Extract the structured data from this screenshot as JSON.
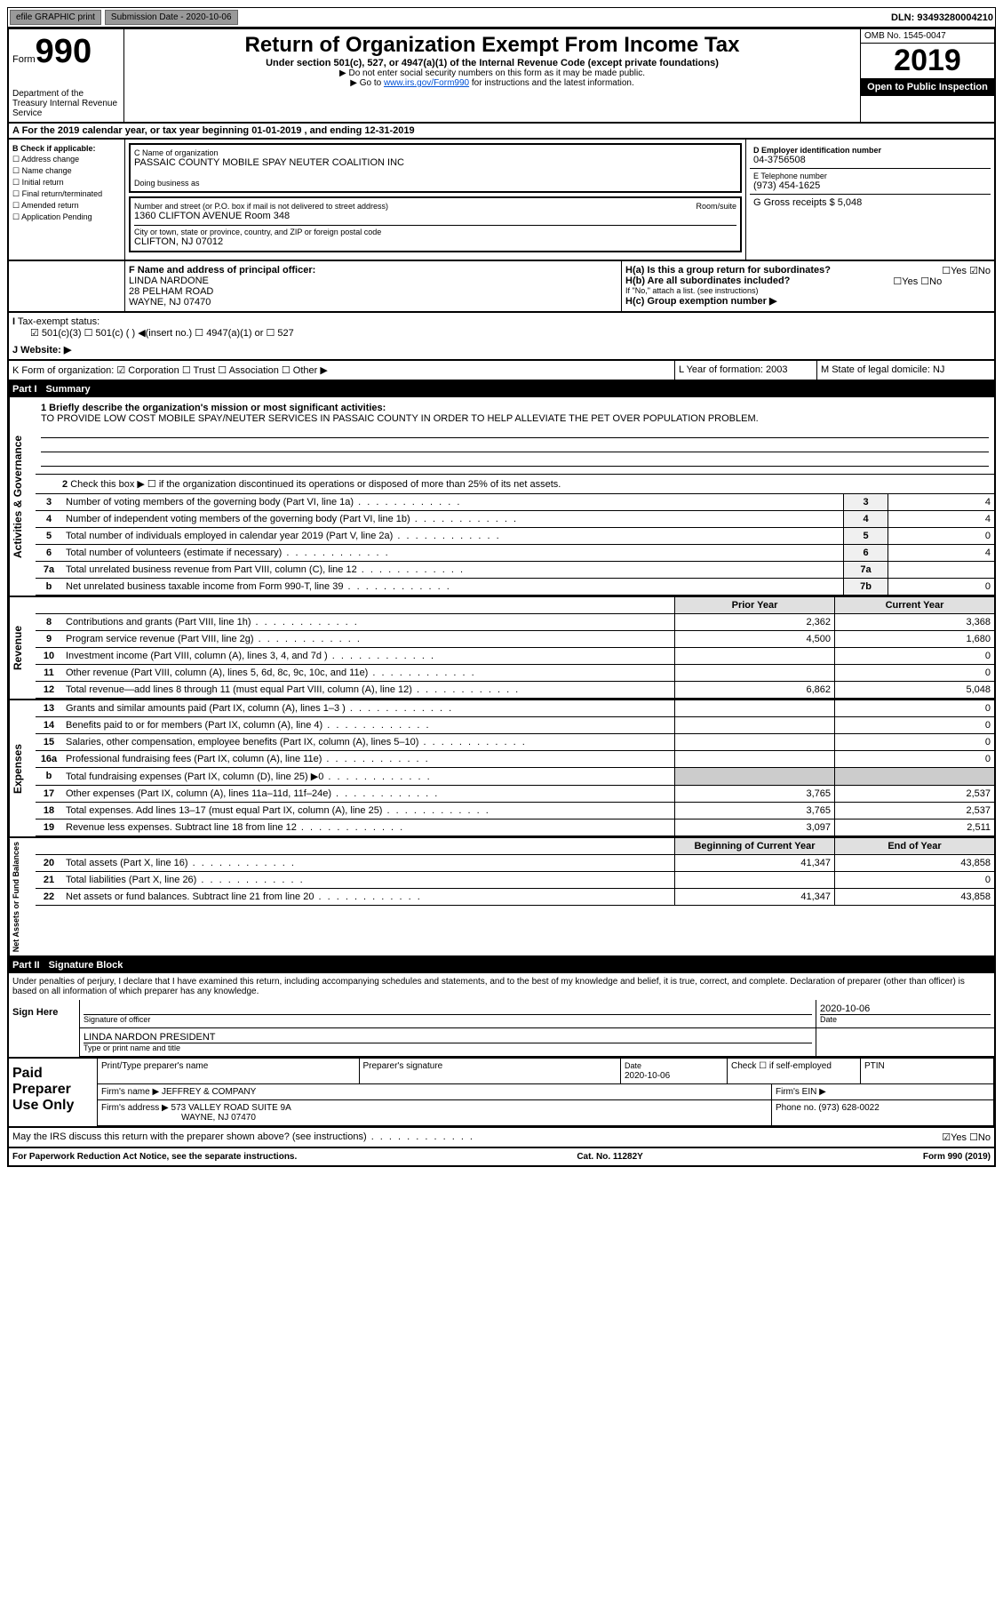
{
  "topbar": {
    "efile": "efile GRAPHIC print",
    "sub_label": "Submission Date - 2020-10-06",
    "dln": "DLN: 93493280004210"
  },
  "header": {
    "form_word": "Form",
    "form_num": "990",
    "dept": "Department of the Treasury\nInternal Revenue Service",
    "title": "Return of Organization Exempt From Income Tax",
    "subtitle": "Under section 501(c), 527, or 4947(a)(1) of the Internal Revenue Code (except private foundations)",
    "instr1": "▶ Do not enter social security numbers on this form as it may be made public.",
    "instr2_pre": "▶ Go to ",
    "instr2_link": "www.irs.gov/Form990",
    "instr2_post": " for instructions and the latest information.",
    "omb": "OMB No. 1545-0047",
    "year": "2019",
    "open": "Open to Public Inspection"
  },
  "section_a": "A For the 2019 calendar year, or tax year beginning 01-01-2019   , and ending 12-31-2019",
  "checks": {
    "hdr": "B Check if applicable:",
    "items": [
      "☐ Address change",
      "☐ Name change",
      "☐ Initial return",
      "☐ Final return/terminated",
      "☐ Amended return",
      "☐ Application Pending"
    ]
  },
  "org": {
    "name_label": "C Name of organization",
    "name": "PASSAIC COUNTY MOBILE SPAY NEUTER COALITION INC",
    "dba_label": "Doing business as",
    "dba": "",
    "addr_label": "Number and street (or P.O. box if mail is not delivered to street address)",
    "room_label": "Room/suite",
    "addr": "1360 CLIFTON AVENUE Room 348",
    "city_label": "City or town, state or province, country, and ZIP or foreign postal code",
    "city": "CLIFTON, NJ  07012"
  },
  "right": {
    "ein_label": "D Employer identification number",
    "ein": "04-3756508",
    "tel_label": "E Telephone number",
    "tel": "(973) 454-1625",
    "gross_label": "G Gross receipts $ 5,048"
  },
  "fg": {
    "f_label": "F  Name and address of principal officer:",
    "f_name": "LINDA NARDONE",
    "f_addr1": "28 PELHAM ROAD",
    "f_addr2": "WAYNE, NJ  07470",
    "ha": "H(a)  Is this a group return for subordinates?",
    "ha_ans": "☐Yes ☑No",
    "hb": "H(b)  Are all subordinates included?",
    "hb_ans": "☐Yes ☐No",
    "hb_note": "If \"No,\" attach a list. (see instructions)",
    "hc": "H(c)  Group exemption number ▶"
  },
  "ij": {
    "i_label": "Tax-exempt status:",
    "i_opts": "☑ 501(c)(3)   ☐ 501(c) (  ) ◀(insert no.)   ☐ 4947(a)(1) or  ☐ 527",
    "j_label": "J   Website: ▶"
  },
  "k": {
    "label": "K Form of organization:  ☑ Corporation ☐ Trust ☐ Association ☐ Other ▶",
    "l": "L Year of formation: 2003",
    "m": "M State of legal domicile: NJ"
  },
  "part1": {
    "title": "Part I",
    "name": "Summary",
    "q1": "1  Briefly describe the organization's mission or most significant activities:",
    "mission": "TO PROVIDE LOW COST MOBILE SPAY/NEUTER SERVICES IN PASSAIC COUNTY IN ORDER TO HELP ALLEVIATE THE PET OVER POPULATION PROBLEM.",
    "q2": "Check this box ▶ ☐ if the organization discontinued its operations or disposed of more than 25% of its net assets.",
    "governance_label": "Activities & Governance",
    "rows_gov": [
      {
        "n": "3",
        "t": "Number of voting members of the governing body (Part VI, line 1a)",
        "b": "3",
        "v": "4"
      },
      {
        "n": "4",
        "t": "Number of independent voting members of the governing body (Part VI, line 1b)",
        "b": "4",
        "v": "4"
      },
      {
        "n": "5",
        "t": "Total number of individuals employed in calendar year 2019 (Part V, line 2a)",
        "b": "5",
        "v": "0"
      },
      {
        "n": "6",
        "t": "Total number of volunteers (estimate if necessary)",
        "b": "6",
        "v": "4"
      },
      {
        "n": "7a",
        "t": "Total unrelated business revenue from Part VIII, column (C), line 12",
        "b": "7a",
        "v": ""
      },
      {
        "n": "b",
        "t": "Net unrelated business taxable income from Form 990-T, line 39",
        "b": "7b",
        "v": "0"
      }
    ],
    "py_hdr": "Prior Year",
    "cy_hdr": "Current Year",
    "revenue_label": "Revenue",
    "rows_rev": [
      {
        "n": "8",
        "t": "Contributions and grants (Part VIII, line 1h)",
        "py": "2,362",
        "cy": "3,368"
      },
      {
        "n": "9",
        "t": "Program service revenue (Part VIII, line 2g)",
        "py": "4,500",
        "cy": "1,680"
      },
      {
        "n": "10",
        "t": "Investment income (Part VIII, column (A), lines 3, 4, and 7d )",
        "py": "",
        "cy": "0"
      },
      {
        "n": "11",
        "t": "Other revenue (Part VIII, column (A), lines 5, 6d, 8c, 9c, 10c, and 11e)",
        "py": "",
        "cy": "0"
      },
      {
        "n": "12",
        "t": "Total revenue—add lines 8 through 11 (must equal Part VIII, column (A), line 12)",
        "py": "6,862",
        "cy": "5,048"
      }
    ],
    "expenses_label": "Expenses",
    "rows_exp": [
      {
        "n": "13",
        "t": "Grants and similar amounts paid (Part IX, column (A), lines 1–3 )",
        "py": "",
        "cy": "0"
      },
      {
        "n": "14",
        "t": "Benefits paid to or for members (Part IX, column (A), line 4)",
        "py": "",
        "cy": "0"
      },
      {
        "n": "15",
        "t": "Salaries, other compensation, employee benefits (Part IX, column (A), lines 5–10)",
        "py": "",
        "cy": "0"
      },
      {
        "n": "16a",
        "t": "Professional fundraising fees (Part IX, column (A), line 11e)",
        "py": "",
        "cy": "0"
      },
      {
        "n": "b",
        "t": "Total fundraising expenses (Part IX, column (D), line 25) ▶0",
        "py": "",
        "cy": "",
        "shaded": true
      },
      {
        "n": "17",
        "t": "Other expenses (Part IX, column (A), lines 11a–11d, 11f–24e)",
        "py": "3,765",
        "cy": "2,537"
      },
      {
        "n": "18",
        "t": "Total expenses. Add lines 13–17 (must equal Part IX, column (A), line 25)",
        "py": "3,765",
        "cy": "2,537"
      },
      {
        "n": "19",
        "t": "Revenue less expenses. Subtract line 18 from line 12",
        "py": "3,097",
        "cy": "2,511"
      }
    ],
    "net_label": "Net Assets or Fund Balances",
    "bcy_hdr": "Beginning of Current Year",
    "eoy_hdr": "End of Year",
    "rows_net": [
      {
        "n": "20",
        "t": "Total assets (Part X, line 16)",
        "py": "41,347",
        "cy": "43,858"
      },
      {
        "n": "21",
        "t": "Total liabilities (Part X, line 26)",
        "py": "",
        "cy": "0"
      },
      {
        "n": "22",
        "t": "Net assets or fund balances. Subtract line 21 from line 20",
        "py": "41,347",
        "cy": "43,858"
      }
    ]
  },
  "part2": {
    "title": "Part II",
    "name": "Signature Block",
    "decl": "Under penalties of perjury, I declare that I have examined this return, including accompanying schedules and statements, and to the best of my knowledge and belief, it is true, correct, and complete. Declaration of preparer (other than officer) is based on all information of which preparer has any knowledge.",
    "sign_here": "Sign Here",
    "sig_officer": "Signature of officer",
    "date_label": "Date",
    "date": "2020-10-06",
    "officer_name": "LINDA NARDON  PRESIDENT",
    "type_label": "Type or print name and title",
    "paid_label": "Paid Preparer Use Only",
    "prep_name_label": "Print/Type preparer's name",
    "prep_sig_label": "Preparer's signature",
    "prep_date": "2020-10-06",
    "self_emp": "Check ☐ if self-employed",
    "ptin_label": "PTIN",
    "firm_name_label": "Firm's name   ▶",
    "firm_name": "JEFFREY & COMPANY",
    "firm_ein_label": "Firm's EIN ▶",
    "firm_addr_label": "Firm's address ▶",
    "firm_addr1": "573 VALLEY ROAD SUITE 9A",
    "firm_addr2": "WAYNE, NJ  07470",
    "phone_label": "Phone no. (973) 628-0022",
    "discuss": "May the IRS discuss this return with the preparer shown above? (see instructions)",
    "discuss_ans": "☑Yes  ☐No"
  },
  "footer": {
    "left": "For Paperwork Reduction Act Notice, see the separate instructions.",
    "mid": "Cat. No. 11282Y",
    "right": "Form 990 (2019)"
  },
  "colors": {
    "black": "#000000",
    "link": "#0051d6",
    "shade": "#cccccc",
    "hdr_bg": "#e0e0e0"
  }
}
